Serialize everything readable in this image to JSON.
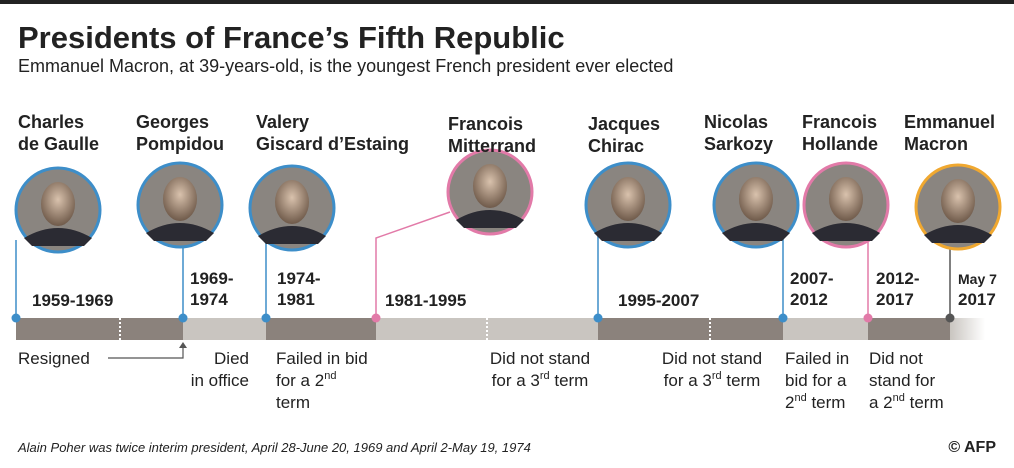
{
  "header": {
    "title": "Presidents of France’s Fifth Republic",
    "subtitle": "Emmanuel Macron, at 39-years-old, is the youngest French president ever elected"
  },
  "presidents": [
    {
      "name": [
        "Charles",
        "de Gaulle"
      ],
      "term": [
        "1959-1969"
      ],
      "outcome": [
        "Resigned"
      ]
    },
    {
      "name": [
        "Georges",
        "Pompidou"
      ],
      "term": [
        "1969-",
        "1974"
      ],
      "outcome": [
        "Died",
        "in office"
      ]
    },
    {
      "name": [
        "Valery",
        "Giscard d’Estaing"
      ],
      "term": [
        "1974-",
        "1981"
      ],
      "outcome": [
        "Failed in bid",
        {
          "before": "for a 2",
          "sup": "nd",
          "after": ""
        },
        "term"
      ]
    },
    {
      "name": [
        "Francois",
        "Mitterrand"
      ],
      "term": [
        "1981-1995"
      ],
      "outcome": [
        "Did not stand",
        {
          "before": "for a 3",
          "sup": "rd",
          "after": " term"
        }
      ]
    },
    {
      "name": [
        "Jacques",
        "Chirac"
      ],
      "term": [
        "1995-2007"
      ],
      "outcome": [
        "Did not stand",
        {
          "before": "for a 3",
          "sup": "rd",
          "after": " term"
        }
      ]
    },
    {
      "name": [
        "Nicolas",
        "Sarkozy"
      ],
      "term": [
        "2007-",
        "2012"
      ],
      "outcome": [
        "Failed in",
        "bid for a",
        {
          "before": "2",
          "sup": "nd",
          "after": " term"
        }
      ]
    },
    {
      "name": [
        "Francois",
        "Hollande"
      ],
      "term": [
        "2012-",
        "2017"
      ],
      "outcome": [
        "Did not",
        "stand for",
        {
          "before": "a 2",
          "sup": "nd",
          "after": " term"
        }
      ]
    },
    {
      "name": [
        "Emmanuel",
        "Macron"
      ],
      "term": [
        "May 7",
        "2017"
      ],
      "outcome": []
    }
  ],
  "footnote": "Alain Poher was twice interim president, April 28-June 20, 1969 and April 2-May 19, 1974",
  "credit": "© AFP"
}
